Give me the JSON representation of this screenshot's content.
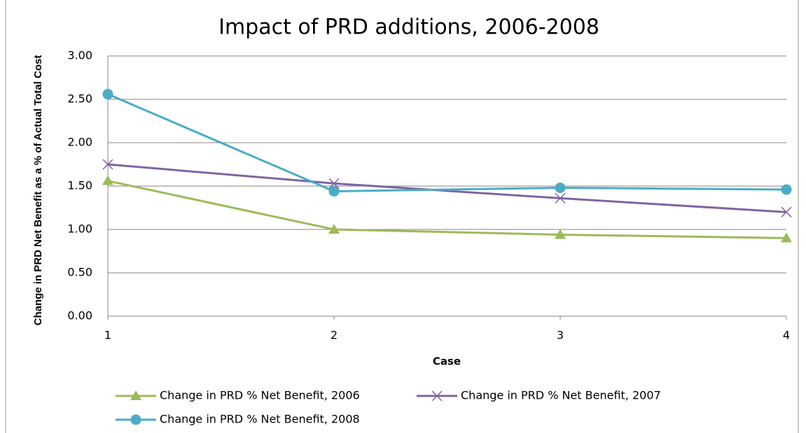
{
  "chart_data": {
    "type": "line",
    "title": "Impact of PRD additions, 2006-2008",
    "x_label": "Case",
    "y_label": "Change in PRD Net Benefit as a % of Actual Total Cost",
    "x": [
      1,
      2,
      3,
      4
    ],
    "xlim": [
      1,
      4
    ],
    "xticks": [
      1,
      2,
      3,
      4
    ],
    "ylim": [
      0,
      3
    ],
    "yticks": [
      {
        "value": 0,
        "label": "0.00"
      },
      {
        "value": 0.5,
        "label": "0.50"
      },
      {
        "value": 1,
        "label": "1.00"
      },
      {
        "value": 1.5,
        "label": "1.50"
      },
      {
        "value": 2,
        "label": "2.00"
      },
      {
        "value": 2.5,
        "label": "2.50"
      },
      {
        "value": 3,
        "label": "3.00"
      }
    ],
    "grid": true,
    "series": [
      {
        "name": "Change in PRD % Net Benefit, 2006",
        "color": "#9bbb59",
        "marker": "triangle",
        "values": [
          1.56,
          1.0,
          0.94,
          0.9
        ]
      },
      {
        "name": "Change in PRD % Net Benefit, 2007",
        "color": "#8064a2",
        "marker": "x",
        "values": [
          1.75,
          1.53,
          1.36,
          1.2
        ]
      },
      {
        "name": "Change in PRD % Net Benefit, 2008",
        "color": "#4bacc6",
        "marker": "circle",
        "values": [
          2.56,
          1.44,
          1.48,
          1.46
        ]
      }
    ]
  }
}
